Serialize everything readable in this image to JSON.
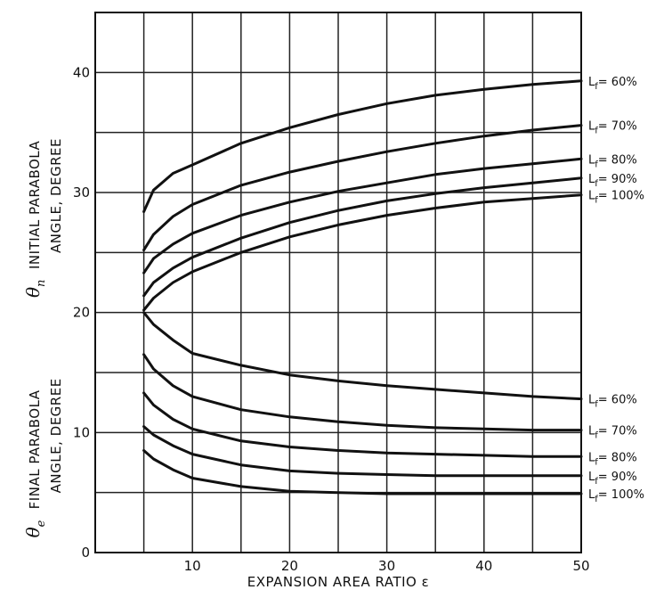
{
  "chart_data": {
    "type": "line",
    "x_axis": {
      "title": "EXPANSION AREA RATIO ε",
      "ticks": [
        10,
        20,
        30,
        40,
        50
      ],
      "range": [
        0,
        50
      ],
      "grid_step": 5
    },
    "y_axis": {
      "ticks": [
        0,
        10,
        20,
        30,
        40
      ],
      "range": [
        0,
        45
      ],
      "grid_step": 5
    },
    "grid": true,
    "panels": [
      {
        "title_symbol": "θ",
        "title_subscript": "n",
        "title_line1": "INITIAL PARABOLA",
        "title_line2": "ANGLE, DEGREE",
        "series": [
          {
            "name": "Lf = 60%",
            "label": "L",
            "label_sub": "f",
            "label_rest": "= 60%",
            "x": [
              5,
              6,
              8,
              10,
              15,
              20,
              25,
              30,
              35,
              40,
              45,
              50
            ],
            "y": [
              28.4,
              30.2,
              31.6,
              32.3,
              34.1,
              35.4,
              36.5,
              37.4,
              38.1,
              38.6,
              39.0,
              39.3
            ]
          },
          {
            "name": "Lf = 70%",
            "label": "L",
            "label_sub": "f",
            "label_rest": "= 70%",
            "x": [
              5,
              6,
              8,
              10,
              15,
              20,
              25,
              30,
              35,
              40,
              45,
              50
            ],
            "y": [
              25.2,
              26.5,
              28.0,
              29.0,
              30.6,
              31.7,
              32.6,
              33.4,
              34.1,
              34.7,
              35.2,
              35.6
            ]
          },
          {
            "name": "Lf = 80%",
            "label": "L",
            "label_sub": "f",
            "label_rest": "= 80%",
            "x": [
              5,
              6,
              8,
              10,
              15,
              20,
              25,
              30,
              35,
              40,
              45,
              50
            ],
            "y": [
              23.3,
              24.5,
              25.7,
              26.6,
              28.1,
              29.2,
              30.1,
              30.8,
              31.5,
              32.0,
              32.4,
              32.8
            ]
          },
          {
            "name": "Lf = 90%",
            "label": "L",
            "label_sub": "f",
            "label_rest": "= 90%",
            "x": [
              5,
              6,
              8,
              10,
              15,
              20,
              25,
              30,
              35,
              40,
              45,
              50
            ],
            "y": [
              21.4,
              22.5,
              23.7,
              24.6,
              26.2,
              27.5,
              28.5,
              29.3,
              29.9,
              30.4,
              30.8,
              31.2
            ]
          },
          {
            "name": "Lf = 100%",
            "label": "L",
            "label_sub": "f",
            "label_rest": "= 100%",
            "x": [
              5,
              6,
              8,
              10,
              15,
              20,
              25,
              30,
              35,
              40,
              45,
              50
            ],
            "y": [
              20.2,
              21.2,
              22.5,
              23.4,
              25.0,
              26.3,
              27.3,
              28.1,
              28.7,
              29.2,
              29.5,
              29.8
            ]
          }
        ]
      },
      {
        "title_symbol": "θ",
        "title_subscript": "e",
        "title_line1": "FINAL PARABOLA",
        "title_line2": "ANGLE, DEGREE",
        "series": [
          {
            "name": "Lf = 60%",
            "label": "L",
            "label_sub": "f",
            "label_rest": "= 60%",
            "x": [
              5,
              6,
              8,
              10,
              15,
              20,
              25,
              30,
              35,
              40,
              45,
              50
            ],
            "y": [
              20.0,
              19.0,
              17.7,
              16.6,
              15.6,
              14.8,
              14.3,
              13.9,
              13.6,
              13.3,
              13.0,
              12.8
            ]
          },
          {
            "name": "Lf = 70%",
            "label": "L",
            "label_sub": "f",
            "label_rest": "= 70%",
            "x": [
              5,
              6,
              8,
              10,
              15,
              20,
              25,
              30,
              35,
              40,
              45,
              50
            ],
            "y": [
              16.5,
              15.3,
              13.9,
              13.0,
              11.9,
              11.3,
              10.9,
              10.6,
              10.4,
              10.3,
              10.2,
              10.2
            ]
          },
          {
            "name": "Lf = 80%",
            "label": "L",
            "label_sub": "f",
            "label_rest": "= 80%",
            "x": [
              5,
              6,
              8,
              10,
              15,
              20,
              25,
              30,
              35,
              40,
              45,
              50
            ],
            "y": [
              13.3,
              12.3,
              11.1,
              10.3,
              9.3,
              8.8,
              8.5,
              8.3,
              8.2,
              8.1,
              8.0,
              8.0
            ]
          },
          {
            "name": "Lf = 90%",
            "label": "L",
            "label_sub": "f",
            "label_rest": "= 90%",
            "x": [
              5,
              6,
              8,
              10,
              15,
              20,
              25,
              30,
              35,
              40,
              45,
              50
            ],
            "y": [
              10.5,
              9.8,
              8.9,
              8.2,
              7.3,
              6.8,
              6.6,
              6.5,
              6.4,
              6.4,
              6.4,
              6.4
            ]
          },
          {
            "name": "Lf = 100%",
            "label": "L",
            "label_sub": "f",
            "label_rest": "= 100%",
            "x": [
              5,
              6,
              8,
              10,
              15,
              20,
              25,
              30,
              35,
              40,
              45,
              50
            ],
            "y": [
              8.5,
              7.8,
              6.9,
              6.2,
              5.5,
              5.1,
              5.0,
              4.9,
              4.9,
              4.9,
              4.9,
              4.9
            ]
          }
        ]
      }
    ]
  }
}
